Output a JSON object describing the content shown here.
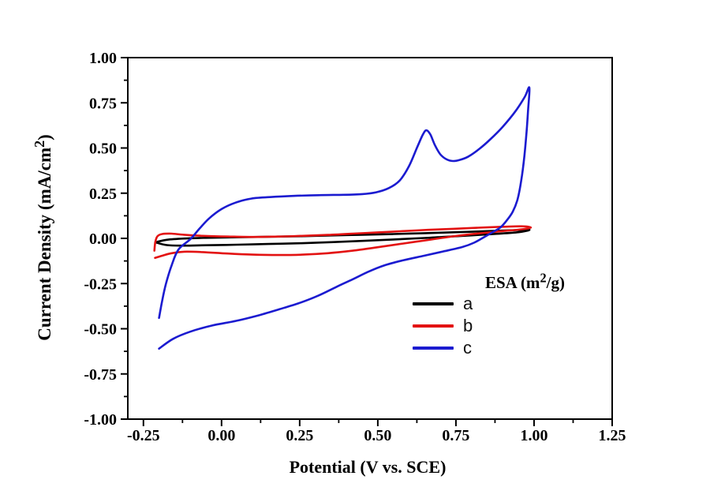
{
  "figure": {
    "background": "#ffffff"
  },
  "labels": {
    "xlabel": "Potential (V vs. SCE)",
    "ylabel_pre": "Current Density (mA/cm",
    "ylabel_sup": "2",
    "ylabel_post": ")",
    "legend_title_pre": "ESA (m",
    "legend_title_sup": "2",
    "legend_title_post": "/g)"
  },
  "legend": {
    "title": "ESA (m²/g)",
    "items": [
      {
        "label": "a",
        "color": "#000000"
      },
      {
        "label": "b",
        "color": "#e31212"
      },
      {
        "label": "c",
        "color": "#1b1bd0"
      }
    ]
  },
  "chart_data": {
    "type": "line",
    "title": "",
    "xlabel": "Potential (V vs. SCE)",
    "ylabel": "Current Density (mA/cm²)",
    "xlim": [
      -0.3,
      1.25
    ],
    "ylim": [
      -1.0,
      1.0
    ],
    "grid": false,
    "legend_position": "inside right-center",
    "axis_color": "#000000",
    "x_ticks": {
      "values": [
        -0.25,
        0.0,
        0.25,
        0.5,
        0.75,
        1.0,
        1.25
      ],
      "labels": [
        "-0.25",
        "0.00",
        "0.25",
        "0.50",
        "0.75",
        "1.00",
        "1.25"
      ],
      "minor": [
        -0.125,
        0.125,
        0.375,
        0.625,
        0.875,
        1.125
      ]
    },
    "y_ticks": {
      "values": [
        1.0,
        0.75,
        0.5,
        0.25,
        0.0,
        -0.25,
        -0.5,
        -0.75,
        -1.0
      ],
      "labels": [
        "1.00",
        "0.75",
        "0.50",
        "0.25",
        "0.00",
        "-0.25",
        "-0.50",
        "-0.75",
        "-1.00"
      ],
      "minor": [
        0.875,
        0.625,
        0.375,
        0.125,
        -0.125,
        -0.375,
        -0.625,
        -0.875
      ]
    },
    "series": [
      {
        "name": "a",
        "color": "#000000",
        "points": [
          [
            -0.212,
            -0.022
          ],
          [
            -0.175,
            -0.008
          ],
          [
            -0.12,
            -0.001
          ],
          [
            -0.05,
            0.003
          ],
          [
            0.05,
            0.006
          ],
          [
            0.15,
            0.009
          ],
          [
            0.25,
            0.012
          ],
          [
            0.35,
            0.016
          ],
          [
            0.45,
            0.02
          ],
          [
            0.55,
            0.024
          ],
          [
            0.65,
            0.029
          ],
          [
            0.75,
            0.034
          ],
          [
            0.85,
            0.04
          ],
          [
            0.93,
            0.045
          ],
          [
            0.985,
            0.048
          ],
          [
            0.95,
            0.034
          ],
          [
            0.85,
            0.022
          ],
          [
            0.75,
            0.012
          ],
          [
            0.65,
            0.002
          ],
          [
            0.55,
            -0.006
          ],
          [
            0.45,
            -0.014
          ],
          [
            0.35,
            -0.021
          ],
          [
            0.25,
            -0.027
          ],
          [
            0.15,
            -0.031
          ],
          [
            0.05,
            -0.035
          ],
          [
            -0.05,
            -0.038
          ],
          [
            -0.12,
            -0.04
          ],
          [
            -0.175,
            -0.037
          ],
          [
            -0.212,
            -0.022
          ]
        ]
      },
      {
        "name": "b",
        "color": "#e31212",
        "points": [
          [
            -0.215,
            -0.068
          ],
          [
            -0.212,
            -0.02
          ],
          [
            -0.205,
            0.012
          ],
          [
            -0.19,
            0.024
          ],
          [
            -0.16,
            0.026
          ],
          [
            -0.12,
            0.02
          ],
          [
            -0.06,
            0.014
          ],
          [
            0.02,
            0.01
          ],
          [
            0.1,
            0.008
          ],
          [
            0.18,
            0.01
          ],
          [
            0.26,
            0.014
          ],
          [
            0.34,
            0.019
          ],
          [
            0.42,
            0.026
          ],
          [
            0.5,
            0.033
          ],
          [
            0.58,
            0.04
          ],
          [
            0.66,
            0.047
          ],
          [
            0.74,
            0.053
          ],
          [
            0.82,
            0.059
          ],
          [
            0.9,
            0.064
          ],
          [
            0.96,
            0.067
          ],
          [
            0.99,
            0.06
          ],
          [
            0.96,
            0.05
          ],
          [
            0.9,
            0.04
          ],
          [
            0.82,
            0.027
          ],
          [
            0.74,
            0.011
          ],
          [
            0.66,
            -0.009
          ],
          [
            0.58,
            -0.029
          ],
          [
            0.5,
            -0.049
          ],
          [
            0.42,
            -0.068
          ],
          [
            0.34,
            -0.082
          ],
          [
            0.26,
            -0.09
          ],
          [
            0.18,
            -0.092
          ],
          [
            0.1,
            -0.09
          ],
          [
            0.02,
            -0.084
          ],
          [
            -0.06,
            -0.076
          ],
          [
            -0.12,
            -0.074
          ],
          [
            -0.16,
            -0.082
          ],
          [
            -0.19,
            -0.096
          ],
          [
            -0.213,
            -0.108
          ]
        ]
      },
      {
        "name": "c",
        "color": "#1b1bd0",
        "points": [
          [
            -0.2,
            -0.44
          ],
          [
            -0.19,
            -0.345
          ],
          [
            -0.178,
            -0.252
          ],
          [
            -0.16,
            -0.15
          ],
          [
            -0.138,
            -0.062
          ],
          [
            -0.1,
            -0.005
          ],
          [
            -0.07,
            0.055
          ],
          [
            -0.04,
            0.11
          ],
          [
            0.0,
            0.162
          ],
          [
            0.045,
            0.198
          ],
          [
            0.095,
            0.22
          ],
          [
            0.16,
            0.229
          ],
          [
            0.23,
            0.235
          ],
          [
            0.31,
            0.239
          ],
          [
            0.39,
            0.241
          ],
          [
            0.45,
            0.245
          ],
          [
            0.495,
            0.255
          ],
          [
            0.535,
            0.278
          ],
          [
            0.57,
            0.32
          ],
          [
            0.6,
            0.4
          ],
          [
            0.625,
            0.5
          ],
          [
            0.643,
            0.57
          ],
          [
            0.655,
            0.598
          ],
          [
            0.668,
            0.575
          ],
          [
            0.683,
            0.515
          ],
          [
            0.7,
            0.465
          ],
          [
            0.72,
            0.437
          ],
          [
            0.74,
            0.428
          ],
          [
            0.762,
            0.434
          ],
          [
            0.79,
            0.453
          ],
          [
            0.825,
            0.495
          ],
          [
            0.86,
            0.548
          ],
          [
            0.9,
            0.618
          ],
          [
            0.94,
            0.702
          ],
          [
            0.97,
            0.782
          ],
          [
            0.985,
            0.834
          ],
          [
            0.981,
            0.71
          ],
          [
            0.976,
            0.59
          ],
          [
            0.969,
            0.455
          ],
          [
            0.959,
            0.32
          ],
          [
            0.947,
            0.215
          ],
          [
            0.932,
            0.148
          ],
          [
            0.913,
            0.1
          ],
          [
            0.892,
            0.06
          ],
          [
            0.868,
            0.035
          ],
          [
            0.843,
            0.01
          ],
          [
            0.808,
            -0.024
          ],
          [
            0.77,
            -0.048
          ],
          [
            0.71,
            -0.072
          ],
          [
            0.648,
            -0.096
          ],
          [
            0.58,
            -0.122
          ],
          [
            0.52,
            -0.15
          ],
          [
            0.468,
            -0.186
          ],
          [
            0.418,
            -0.228
          ],
          [
            0.368,
            -0.268
          ],
          [
            0.308,
            -0.318
          ],
          [
            0.248,
            -0.358
          ],
          [
            0.185,
            -0.392
          ],
          [
            0.118,
            -0.426
          ],
          [
            0.048,
            -0.456
          ],
          [
            -0.03,
            -0.482
          ],
          [
            -0.1,
            -0.516
          ],
          [
            -0.155,
            -0.556
          ],
          [
            -0.2,
            -0.61
          ]
        ]
      }
    ]
  }
}
